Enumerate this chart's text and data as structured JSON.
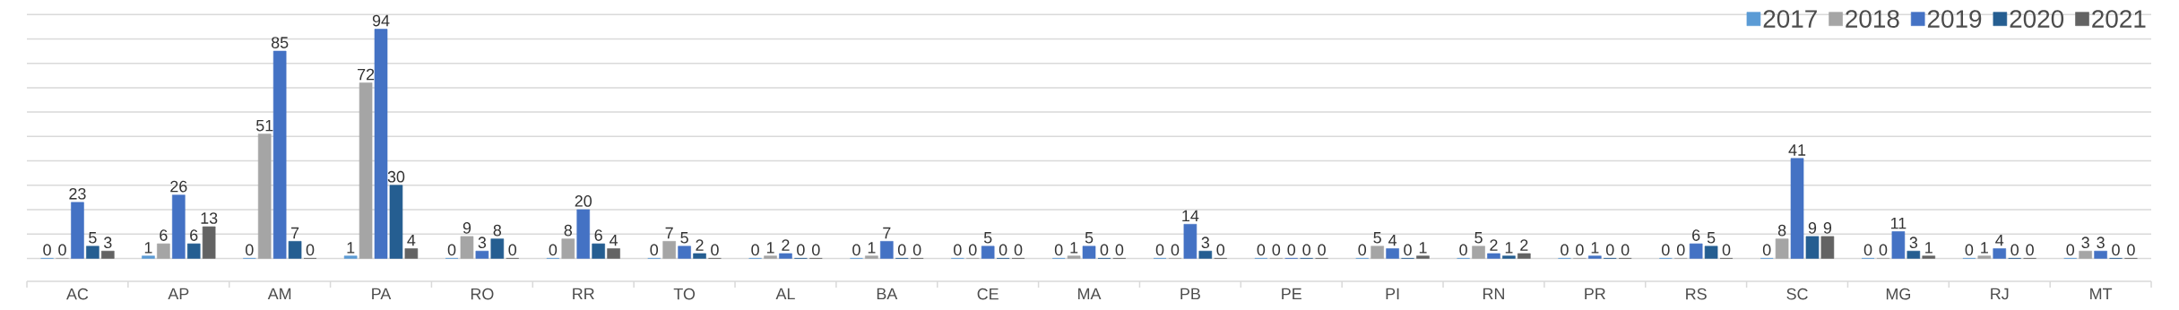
{
  "chart_data": {
    "type": "bar",
    "categories": [
      "AC",
      "AP",
      "AM",
      "PA",
      "RO",
      "RR",
      "TO",
      "AL",
      "BA",
      "CE",
      "MA",
      "PB",
      "PE",
      "PI",
      "RN",
      "PR",
      "RS",
      "SC",
      "MG",
      "RJ",
      "MT"
    ],
    "series": [
      {
        "name": "2017",
        "color": "#5b9bd5",
        "values": [
          0,
          1,
          0,
          1,
          0,
          0,
          0,
          0,
          0,
          0,
          0,
          0,
          0,
          0,
          0,
          0,
          0,
          0,
          0,
          0,
          0
        ]
      },
      {
        "name": "2018",
        "color": "#a5a5a5",
        "values": [
          0,
          6,
          51,
          72,
          9,
          8,
          7,
          1,
          1,
          0,
          1,
          0,
          0,
          5,
          5,
          0,
          0,
          8,
          0,
          1,
          3
        ]
      },
      {
        "name": "2019",
        "color": "#4472c4",
        "values": [
          23,
          26,
          85,
          94,
          3,
          20,
          5,
          2,
          7,
          5,
          5,
          14,
          0,
          4,
          2,
          1,
          6,
          41,
          11,
          4,
          3
        ]
      },
      {
        "name": "2020",
        "color": "#255e91",
        "values": [
          5,
          6,
          7,
          30,
          8,
          6,
          2,
          0,
          0,
          0,
          0,
          3,
          0,
          0,
          1,
          0,
          5,
          9,
          3,
          0,
          0
        ]
      },
      {
        "name": "2021",
        "color": "#636363",
        "values": [
          3,
          13,
          0,
          4,
          0,
          4,
          0,
          0,
          0,
          0,
          0,
          0,
          0,
          1,
          2,
          0,
          0,
          9,
          1,
          0,
          0
        ]
      }
    ],
    "data_labels": true,
    "legend": "top right",
    "grid": "y",
    "tick_labels": "x"
  }
}
